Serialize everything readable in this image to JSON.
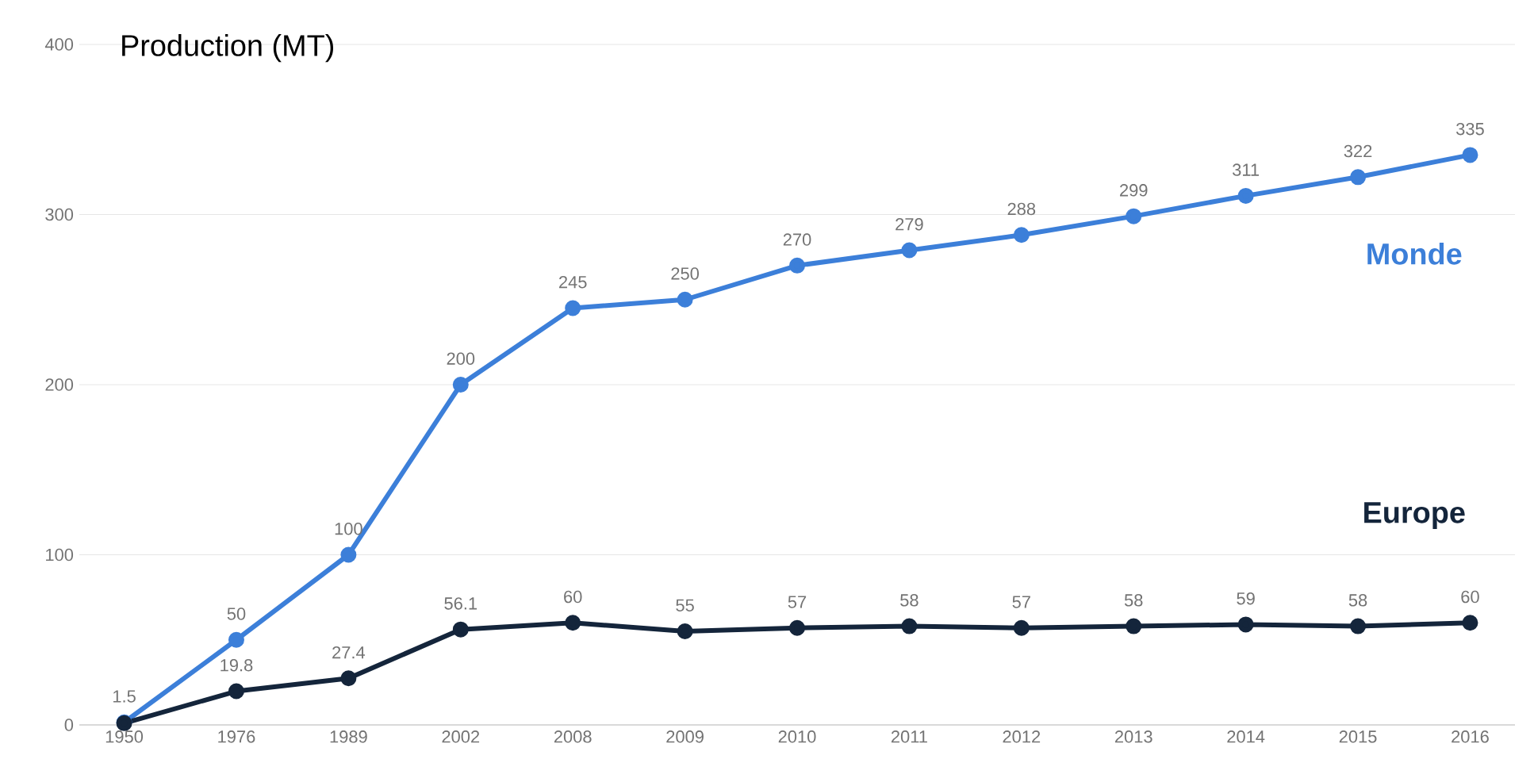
{
  "chart_data": {
    "type": "line",
    "ylabel": "Production (MT)",
    "categories": [
      "1950",
      "1976",
      "1989",
      "2002",
      "2008",
      "2009",
      "2010",
      "2011",
      "2012",
      "2013",
      "2014",
      "2015",
      "2016"
    ],
    "series": [
      {
        "name": "Monde",
        "color": "#3c7fd9",
        "values": [
          1.5,
          50,
          100,
          200,
          245,
          250,
          270,
          279,
          288,
          299,
          311,
          322,
          335
        ],
        "value_labels": [
          "1.5",
          "50",
          "100",
          "200",
          "245",
          "250",
          "270",
          "279",
          "288",
          "299",
          "311",
          "322",
          "335"
        ]
      },
      {
        "name": "Europe",
        "color": "#14253b",
        "values": [
          1,
          19.8,
          27.4,
          56.1,
          60,
          55,
          57,
          58,
          57,
          58,
          59,
          58,
          60
        ],
        "value_labels": [
          null,
          "19.8",
          "27.4",
          "56.1",
          "60",
          "55",
          "57",
          "58",
          "57",
          "58",
          "59",
          "58",
          "60"
        ]
      }
    ],
    "ylim": [
      0,
      400
    ],
    "yticks": [
      0,
      100,
      200,
      300,
      400
    ],
    "grid": "y",
    "marker": "circle",
    "line_style": "solid"
  }
}
